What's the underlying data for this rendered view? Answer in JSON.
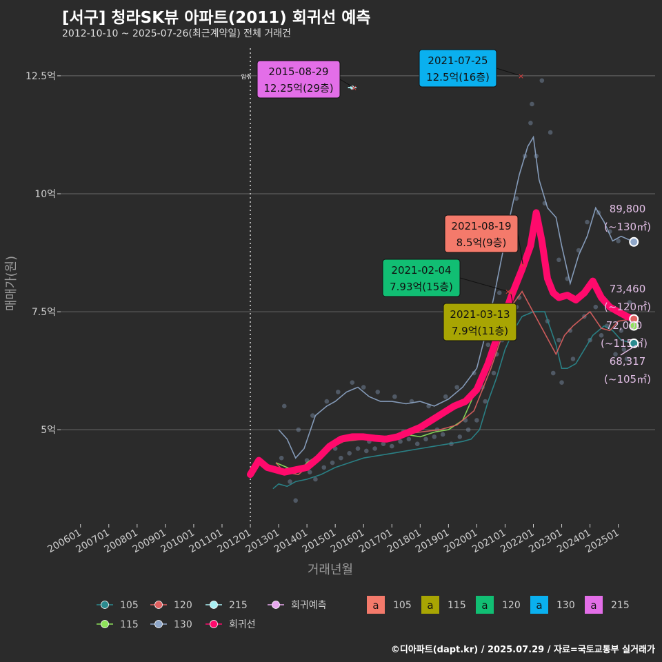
{
  "header": {
    "title": "[서구] 청라SK뷰 아파트(2011) 회귀선 예측",
    "subtitle": "2012-10-10 ~ 2025-07-26(최근계약일) 전체 거래건",
    "credit": "©디아파트(dapt.kr) / 2025.07.29 / 자료=국토교통부 실거래가"
  },
  "chart_data": {
    "type": "line",
    "xlabel": "거래년월",
    "ylabel": "매매가(원)",
    "x_ticks": [
      "200601",
      "200701",
      "200801",
      "200901",
      "201001",
      "201101",
      "201201",
      "201301",
      "201401",
      "201501",
      "201601",
      "201701",
      "201801",
      "201901",
      "202001",
      "202101",
      "202201",
      "202301",
      "202401",
      "202501"
    ],
    "y_ticks": [
      {
        "value": 5,
        "label": "5억"
      },
      {
        "value": 7.5,
        "label": "7.5억"
      },
      {
        "value": 10,
        "label": "10억"
      },
      {
        "value": 12.5,
        "label": "12.5억"
      }
    ],
    "ylim": [
      3.0,
      13.2
    ],
    "xlim": [
      2005.3,
      2026.3
    ],
    "move_in_line": {
      "x": 2012.0,
      "label": "입주"
    },
    "colors": {
      "105": "#2a8a8f",
      "115": "#8ee35a",
      "120": "#e06060",
      "130": "#8fa7c9",
      "215": "#a8eef2",
      "regression": "#ff0a6c",
      "prediction": "#e8a8ee"
    },
    "series": [
      {
        "name": "105",
        "color": "#2a8a8f",
        "x": [
          2012.8,
          2013.0,
          2013.3,
          2013.6,
          2014.0,
          2014.5,
          2015.0,
          2015.5,
          2016.0,
          2016.5,
          2017.0,
          2017.5,
          2018.0,
          2018.5,
          2019.0,
          2019.5,
          2019.8,
          2020.1,
          2020.4,
          2020.7,
          2021.0,
          2021.3,
          2021.6,
          2022.0,
          2022.4,
          2022.8,
          2023.0,
          2023.2,
          2023.5,
          2023.8,
          2024.1,
          2024.5,
          2024.8,
          2025.1,
          2025.5
        ],
        "values": [
          3.75,
          3.85,
          3.8,
          3.9,
          3.95,
          4.05,
          4.2,
          4.3,
          4.4,
          4.45,
          4.5,
          4.55,
          4.6,
          4.65,
          4.7,
          4.75,
          4.8,
          5.0,
          5.6,
          6.1,
          6.7,
          7.1,
          7.4,
          7.5,
          7.5,
          6.8,
          6.3,
          6.3,
          6.4,
          6.7,
          7.0,
          7.2,
          7.1,
          6.9,
          6.83
        ]
      },
      {
        "name": "115",
        "color": "#8ee35a",
        "x": [
          2012.9,
          2013.3,
          2013.7,
          2014.0,
          2014.5,
          2015.0,
          2015.5,
          2016.0,
          2016.5,
          2017.0,
          2017.5,
          2018.0,
          2018.5,
          2019.0,
          2019.5,
          2019.8,
          2020.2,
          2020.6,
          2021.0,
          2021.2
        ],
        "values": [
          4.3,
          4.2,
          4.1,
          4.3,
          4.5,
          4.7,
          4.85,
          4.9,
          4.8,
          4.8,
          4.9,
          4.85,
          4.95,
          5.0,
          5.2,
          5.6,
          6.2,
          6.9,
          7.6,
          7.9
        ]
      },
      {
        "name": "120",
        "color": "#e06060",
        "x": [
          2012.9,
          2013.2,
          2013.7,
          2014.2,
          2014.8,
          2015.3,
          2016.0,
          2016.6,
          2017.3,
          2018.0,
          2018.7,
          2019.3,
          2019.9,
          2020.5,
          2020.9,
          2021.2,
          2021.6,
          2022.8,
          2023.1,
          2023.4,
          2023.7,
          2024.0,
          2024.4,
          2024.7,
          2025.0,
          2025.55
        ],
        "values": [
          4.3,
          4.1,
          4.05,
          4.3,
          4.6,
          4.75,
          4.8,
          4.85,
          4.9,
          4.95,
          5.0,
          5.1,
          5.4,
          6.3,
          7.0,
          7.6,
          7.93,
          6.6,
          7.0,
          7.2,
          7.35,
          7.5,
          7.15,
          7.1,
          7.3,
          7.35
        ]
      },
      {
        "name": "130",
        "color": "#8fa7c9",
        "x": [
          2013.0,
          2013.3,
          2013.6,
          2013.9,
          2014.3,
          2014.7,
          2015.0,
          2015.4,
          2015.8,
          2016.2,
          2016.6,
          2017.0,
          2017.5,
          2018.0,
          2018.5,
          2019.0,
          2019.5,
          2020.0,
          2020.3,
          2020.6,
          2020.9,
          2021.2,
          2021.5,
          2021.8,
          2022.0,
          2022.2,
          2022.5,
          2022.8,
          2023.0,
          2023.3,
          2023.6,
          2023.9,
          2024.2,
          2024.5,
          2024.8,
          2025.1,
          2025.55
        ],
        "values": [
          5.0,
          4.8,
          4.4,
          4.6,
          5.3,
          5.5,
          5.6,
          5.8,
          5.9,
          5.7,
          5.6,
          5.6,
          5.55,
          5.6,
          5.5,
          5.65,
          5.9,
          6.3,
          7.0,
          7.8,
          8.7,
          9.6,
          10.4,
          11.0,
          11.2,
          10.3,
          9.7,
          9.5,
          8.9,
          8.1,
          8.7,
          9.1,
          9.7,
          9.4,
          9.0,
          9.1,
          8.98
        ]
      },
      {
        "name": "215",
        "color": "#a8eef2",
        "x": [
          2015.45,
          2015.75
        ],
        "values": [
          12.25,
          12.25
        ]
      }
    ],
    "regression": {
      "name": "회귀선",
      "color": "#ff0a6c",
      "x": [
        2012.0,
        2012.3,
        2012.6,
        2012.9,
        2013.2,
        2013.6,
        2014.0,
        2014.4,
        2014.8,
        2015.2,
        2015.6,
        2016.0,
        2016.4,
        2016.8,
        2017.2,
        2017.6,
        2018.0,
        2018.4,
        2018.8,
        2019.2,
        2019.6,
        2020.0,
        2020.4,
        2020.8,
        2021.2,
        2021.6,
        2021.9,
        2022.1,
        2022.3,
        2022.5,
        2022.7,
        2022.9,
        2023.2,
        2023.5,
        2023.8,
        2024.1,
        2024.4,
        2024.7,
        2025.0,
        2025.3,
        2025.55
      ],
      "values": [
        4.05,
        4.35,
        4.2,
        4.15,
        4.1,
        4.15,
        4.2,
        4.4,
        4.65,
        4.8,
        4.85,
        4.85,
        4.82,
        4.8,
        4.85,
        4.95,
        5.05,
        5.2,
        5.35,
        5.5,
        5.6,
        5.85,
        6.4,
        7.1,
        7.8,
        8.4,
        8.9,
        9.6,
        9.0,
        8.2,
        7.9,
        7.8,
        7.85,
        7.75,
        7.9,
        8.15,
        7.8,
        7.6,
        7.5,
        7.4,
        7.35
      ]
    },
    "scatter_samples": [
      [
        2013.1,
        4.4
      ],
      [
        2013.4,
        3.9
      ],
      [
        2013.6,
        3.5
      ],
      [
        2013.8,
        4.2
      ],
      [
        2014.1,
        4.1
      ],
      [
        2014.3,
        3.95
      ],
      [
        2014.6,
        4.2
      ],
      [
        2014.9,
        4.3
      ],
      [
        2015.2,
        4.4
      ],
      [
        2015.5,
        4.5
      ],
      [
        2015.8,
        4.6
      ],
      [
        2016.1,
        4.55
      ],
      [
        2016.4,
        4.6
      ],
      [
        2016.7,
        4.7
      ],
      [
        2017.0,
        4.65
      ],
      [
        2017.3,
        4.75
      ],
      [
        2017.6,
        4.8
      ],
      [
        2017.9,
        4.7
      ],
      [
        2018.2,
        4.8
      ],
      [
        2018.5,
        4.85
      ],
      [
        2018.8,
        4.9
      ],
      [
        2019.1,
        4.7
      ],
      [
        2019.4,
        4.85
      ],
      [
        2019.7,
        5.0
      ],
      [
        2020.0,
        5.2
      ],
      [
        2020.3,
        5.6
      ],
      [
        2020.6,
        6.2
      ],
      [
        2020.9,
        6.9
      ],
      [
        2021.2,
        7.5
      ],
      [
        2021.5,
        7.8
      ],
      [
        2013.2,
        5.5
      ],
      [
        2013.7,
        5.0
      ],
      [
        2014.2,
        5.3
      ],
      [
        2014.7,
        5.6
      ],
      [
        2015.1,
        5.8
      ],
      [
        2015.6,
        6.0
      ],
      [
        2016.0,
        5.9
      ],
      [
        2016.5,
        5.8
      ],
      [
        2017.1,
        5.7
      ],
      [
        2017.7,
        5.6
      ],
      [
        2018.3,
        5.5
      ],
      [
        2018.9,
        5.7
      ],
      [
        2019.3,
        5.9
      ],
      [
        2019.9,
        6.2
      ],
      [
        2020.4,
        6.8
      ],
      [
        2020.8,
        7.9
      ],
      [
        2021.1,
        8.9
      ],
      [
        2021.4,
        9.9
      ],
      [
        2021.7,
        10.8
      ],
      [
        2021.9,
        11.5
      ],
      [
        2022.1,
        10.8
      ],
      [
        2022.4,
        9.8
      ],
      [
        2022.9,
        8.6
      ],
      [
        2023.2,
        8.2
      ],
      [
        2023.6,
        8.8
      ],
      [
        2023.9,
        9.4
      ],
      [
        2024.3,
        9.6
      ],
      [
        2024.7,
        9.2
      ],
      [
        2025.0,
        9.0
      ],
      [
        2022.3,
        12.4
      ],
      [
        2021.95,
        11.9
      ],
      [
        2022.6,
        11.3
      ],
      [
        2013.3,
        4.15
      ],
      [
        2014.0,
        4.35
      ],
      [
        2015.0,
        4.6
      ],
      [
        2016.2,
        4.75
      ],
      [
        2017.4,
        4.95
      ],
      [
        2018.6,
        5.0
      ],
      [
        2019.6,
        5.2
      ],
      [
        2020.2,
        5.9
      ],
      [
        2020.7,
        6.6
      ],
      [
        2021.0,
        7.3
      ],
      [
        2021.4,
        7.6
      ],
      [
        2022.5,
        7.3
      ],
      [
        2022.9,
        6.9
      ],
      [
        2023.3,
        7.1
      ],
      [
        2023.8,
        7.4
      ],
      [
        2024.2,
        7.6
      ],
      [
        2024.6,
        7.2
      ],
      [
        2025.1,
        7.1
      ],
      [
        2025.4,
        7.7
      ],
      [
        2025.2,
        6.7
      ],
      [
        2022.7,
        6.2
      ],
      [
        2023.0,
        6.0
      ],
      [
        2023.4,
        6.5
      ],
      [
        2024.0,
        6.9
      ],
      [
        2024.4,
        7.0
      ],
      [
        2024.9,
        6.6
      ],
      [
        2025.3,
        6.5
      ]
    ],
    "annotations": [
      {
        "date": "2015-08-29",
        "text": "12.25억(29층)",
        "color": "#e36ee8",
        "point": [
          2015.66,
          12.25
        ]
      },
      {
        "date": "2021-07-25",
        "text": "12.5억(16층)",
        "color": "#0ab0ef",
        "point": [
          2021.56,
          12.5
        ]
      },
      {
        "date": "2021-08-19",
        "text": "8.5억(9층)",
        "color": "#f47a6b",
        "point": [
          2021.63,
          8.5
        ]
      },
      {
        "date": "2021-02-04",
        "text": "7.93억(15층)",
        "color": "#11be73",
        "point": [
          2021.1,
          7.93
        ]
      },
      {
        "date": "2021-03-13",
        "text": "7.9억(11층)",
        "color": "#a8a503",
        "point": [
          2021.2,
          7.9
        ]
      }
    ],
    "predictions": [
      {
        "price": "89,800",
        "area": "(~130㎡)",
        "value": 8.98,
        "color": "#8fa7c9"
      },
      {
        "price": "73,460",
        "area": "(~120㎡)",
        "value": 7.346,
        "color": "#e06060"
      },
      {
        "price": "72,000",
        "area": "(~115㎡)",
        "value": 7.2,
        "color": "#8ee35a"
      },
      {
        "price": "68,317",
        "area": "(~105㎡)",
        "value": 6.83,
        "color": "#2a8a8f"
      }
    ],
    "legend": {
      "lines": [
        {
          "label": "105",
          "color": "#2a8a8f"
        },
        {
          "label": "120",
          "color": "#e06060"
        },
        {
          "label": "215",
          "color": "#a8eef2"
        },
        {
          "label": "회귀예측",
          "color": "#e8a8ee"
        },
        {
          "label": "115",
          "color": "#8ee35a"
        },
        {
          "label": "130",
          "color": "#8fa7c9"
        },
        {
          "label": "회귀선",
          "color": "#ff0a6c"
        }
      ],
      "boxes": [
        {
          "label": "105",
          "color": "#f47a6b"
        },
        {
          "label": "115",
          "color": "#a8a503"
        },
        {
          "label": "120",
          "color": "#11be73"
        },
        {
          "label": "130",
          "color": "#0ab0ef"
        },
        {
          "label": "215",
          "color": "#e36ee8"
        }
      ],
      "box_glyph": "a"
    }
  }
}
